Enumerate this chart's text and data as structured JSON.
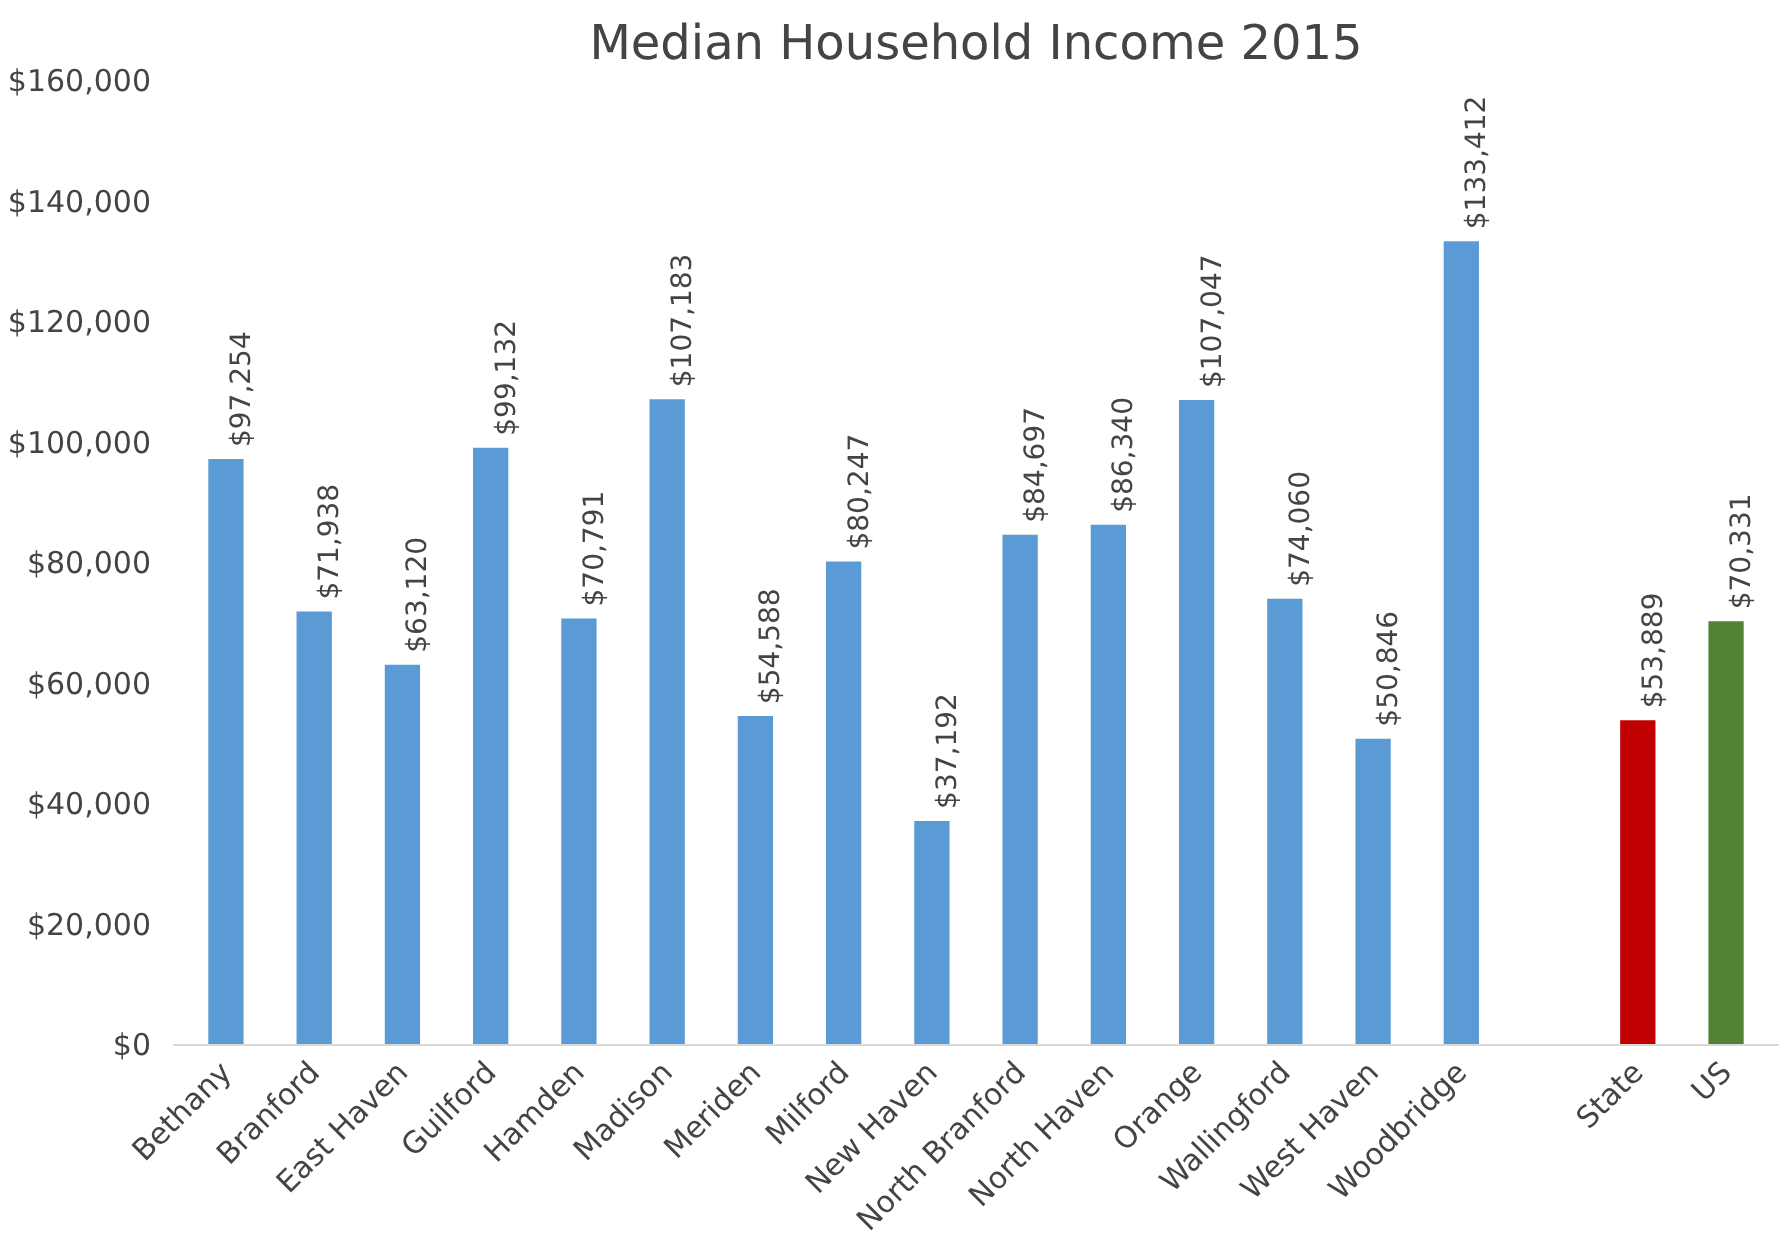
{
  "chart_data": {
    "type": "bar",
    "title": "Median Household Income 2015",
    "categories": [
      "Bethany",
      "Branford",
      "East Haven",
      "Guilford",
      "Hamden",
      "Madison",
      "Meriden",
      "Milford",
      "New Haven",
      "North Branford",
      "North Haven",
      "Orange",
      "Wallingford",
      "West Haven",
      "Woodbridge",
      null,
      "State",
      "US"
    ],
    "values": [
      97254,
      71938,
      63120,
      99132,
      70791,
      107183,
      54588,
      80247,
      37192,
      84697,
      86340,
      107047,
      74060,
      50846,
      133412,
      null,
      53889,
      70331
    ],
    "value_labels": [
      "$97,254",
      "$71,938",
      "$63,120",
      "$99,132",
      "$70,791",
      "$107,183",
      "$54,588",
      "$80,247",
      "$37,192",
      "$84,697",
      "$86,340",
      "$107,047",
      "$74,060",
      "$50,846",
      "$133,412",
      null,
      "$53,889",
      "$70,331"
    ],
    "colors": [
      "#5b9bd5",
      "#5b9bd5",
      "#5b9bd5",
      "#5b9bd5",
      "#5b9bd5",
      "#5b9bd5",
      "#5b9bd5",
      "#5b9bd5",
      "#5b9bd5",
      "#5b9bd5",
      "#5b9bd5",
      "#5b9bd5",
      "#5b9bd5",
      "#5b9bd5",
      "#5b9bd5",
      null,
      "#c00000",
      "#548235"
    ],
    "ylim": [
      0,
      160000
    ],
    "yticks": [
      {
        "value": 0,
        "label": "$0"
      },
      {
        "value": 20000,
        "label": "$20,000"
      },
      {
        "value": 40000,
        "label": "$40,000"
      },
      {
        "value": 60000,
        "label": "$60,000"
      },
      {
        "value": 80000,
        "label": "$80,000"
      },
      {
        "value": 100000,
        "label": "$100,000"
      },
      {
        "value": 120000,
        "label": "$120,000"
      },
      {
        "value": 140000,
        "label": "$140,000"
      },
      {
        "value": 160000,
        "label": "$160,000"
      }
    ],
    "grid": false
  }
}
